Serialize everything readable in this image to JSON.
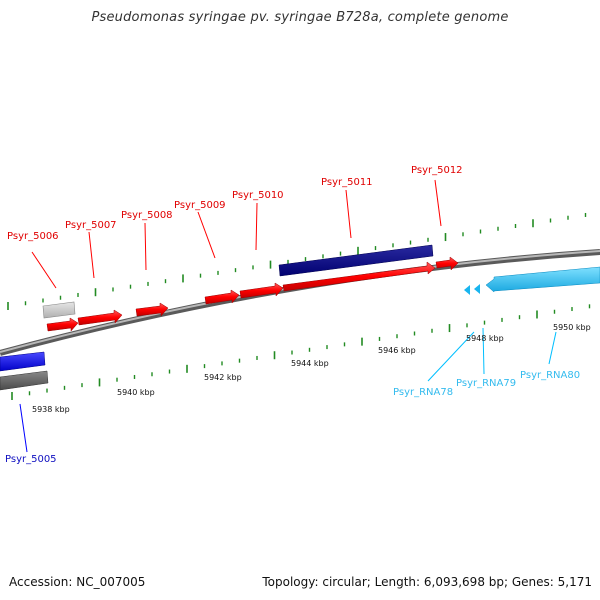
{
  "title": "Pseudomonas syringae pv. syringae B728a, complete genome",
  "footer": {
    "accession": "Accession: NC_007005",
    "topology": "Topology: circular; Length: 6,093,698 bp; Genes: 5,171"
  },
  "colors": {
    "forward_gene": "#ff0000",
    "forward_gene_dark": "#000080",
    "reverse_gene": "#0000ff",
    "rna": "#00bfff",
    "backbone": "#808080",
    "tick": "#228b22"
  },
  "scale_labels": [
    "5938 kbp",
    "5940 kbp",
    "5942 kbp",
    "5944 kbp",
    "5946 kbp",
    "5948 kbp",
    "5950 kbp"
  ],
  "gene_labels": {
    "red": [
      "Psyr_5006",
      "Psyr_5007",
      "Psyr_5008",
      "Psyr_5009",
      "Psyr_5010",
      "Psyr_5011",
      "Psyr_5012"
    ],
    "blue": [
      "Psyr_5005"
    ],
    "rna": [
      "Psyr_RNA78",
      "Psyr_RNA79",
      "Psyr_RNA80"
    ]
  }
}
